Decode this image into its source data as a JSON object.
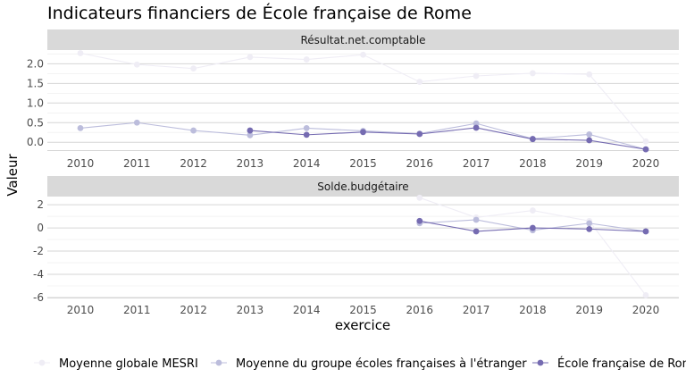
{
  "chart_data": {
    "type": "line",
    "title": "Indicateurs financiers de École française de Rome",
    "xlabel": "exercice",
    "ylabel": "Valeur",
    "legend_position": "bottom",
    "x_ticks": [
      "2010",
      "2011",
      "2012",
      "2013",
      "2014",
      "2015",
      "2016",
      "2017",
      "2018",
      "2019",
      "2020"
    ],
    "legend": [
      "Moyenne globale MESRI",
      "Moyenne du groupe écoles françaises à l'étranger",
      "École française de Rome"
    ],
    "colors": [
      "#efedf5",
      "#bcbddc",
      "#756bb1"
    ],
    "panels": [
      {
        "strip": "Résultat.net.comptable",
        "ylim": [
          -0.2,
          2.35
        ],
        "y_ticks": [
          0,
          0.5,
          1,
          1.5,
          2
        ],
        "y_tick_labels": [
          "0.0",
          "0.5",
          "1.0",
          "1.5",
          "2.0"
        ],
        "series": [
          {
            "name": "Moyenne globale MESRI",
            "x": [
              2010,
              2011,
              2012,
              2013,
              2014,
              2015,
              2016,
              2017,
              2018,
              2019,
              2020
            ],
            "values": [
              2.27,
              1.98,
              1.88,
              2.17,
              2.11,
              2.23,
              1.54,
              1.69,
              1.76,
              1.73,
              0.02
            ]
          },
          {
            "name": "Moyenne du groupe écoles françaises à l'étranger",
            "x": [
              2010,
              2011,
              2012,
              2013,
              2014,
              2015,
              2016,
              2017,
              2018,
              2019,
              2020
            ],
            "values": [
              0.36,
              0.5,
              0.3,
              0.18,
              0.36,
              0.29,
              0.22,
              0.48,
              0.09,
              0.2,
              -0.18
            ]
          },
          {
            "name": "École française de Rome",
            "x": [
              2013,
              2014,
              2015,
              2016,
              2017,
              2018,
              2019,
              2020
            ],
            "values": [
              0.3,
              0.19,
              0.26,
              0.21,
              0.37,
              0.08,
              0.05,
              -0.18
            ]
          }
        ]
      },
      {
        "strip": "Solde.budgétaire",
        "ylim": [
          -6.0,
          2.7
        ],
        "y_ticks": [
          -6,
          -4,
          -2,
          0,
          2
        ],
        "y_tick_labels": [
          "-6",
          "-4",
          "-2",
          "0",
          "2"
        ],
        "series": [
          {
            "name": "Moyenne globale MESRI",
            "x": [
              2016,
              2017,
              2018,
              2019,
              2020
            ],
            "values": [
              2.6,
              0.9,
              1.5,
              0.6,
              -5.8
            ]
          },
          {
            "name": "Moyenne du groupe écoles françaises à l'étranger",
            "x": [
              2016,
              2017,
              2018,
              2019,
              2020
            ],
            "values": [
              0.4,
              0.7,
              -0.2,
              0.4,
              -0.3
            ]
          },
          {
            "name": "École française de Rome",
            "x": [
              2016,
              2017,
              2018,
              2019,
              2020
            ],
            "values": [
              0.6,
              -0.3,
              0.0,
              -0.1,
              -0.3
            ]
          }
        ]
      }
    ]
  }
}
